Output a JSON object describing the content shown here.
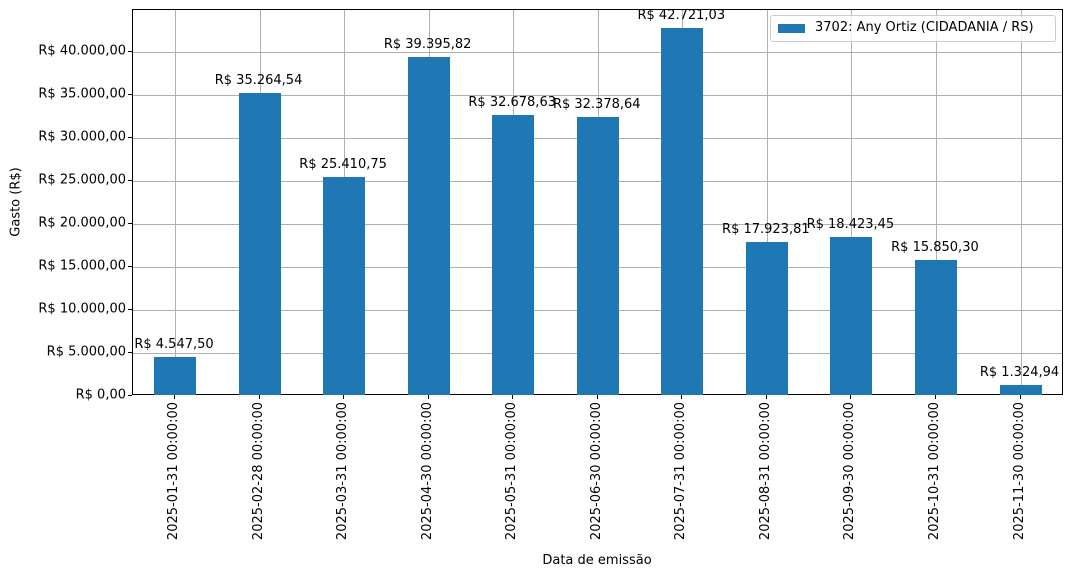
{
  "chart_data": {
    "type": "bar",
    "title": "",
    "xlabel": "Data de emissão",
    "ylabel": "Gasto (R$)",
    "ylim": [
      0,
      44857
    ],
    "grid": true,
    "legend_position": "upper right",
    "categories": [
      "2025-01-31 00:00:00",
      "2025-02-28 00:00:00",
      "2025-03-31 00:00:00",
      "2025-04-30 00:00:00",
      "2025-05-31 00:00:00",
      "2025-06-30 00:00:00",
      "2025-07-31 00:00:00",
      "2025-08-31 00:00:00",
      "2025-09-30 00:00:00",
      "2025-10-31 00:00:00",
      "2025-11-30 00:00:00"
    ],
    "series": [
      {
        "name": "3702: Any Ortiz (CIDADANIA / RS)",
        "color": "#1f77b4",
        "values": [
          4547.5,
          35264.54,
          25410.75,
          39395.82,
          32678.63,
          32378.64,
          42721.03,
          17923.81,
          18423.45,
          15850.3,
          1324.94
        ]
      }
    ],
    "bar_labels": [
      "R$ 4.547,50",
      "R$ 35.264,54",
      "R$ 25.410,75",
      "R$ 39.395,82",
      "R$ 32.678,63",
      "R$ 32.378,64",
      "R$ 42.721,03",
      "R$ 17.923,81",
      "R$ 18.423,45",
      "R$ 15.850,30",
      "R$ 1.324,94"
    ],
    "yticks": [
      0,
      5000,
      10000,
      15000,
      20000,
      25000,
      30000,
      35000,
      40000
    ],
    "ytick_labels": [
      "R$ 0,00",
      "R$ 5.000,00",
      "R$ 10.000,00",
      "R$ 15.000,00",
      "R$ 20.000,00",
      "R$ 25.000,00",
      "R$ 30.000,00",
      "R$ 35.000,00",
      "R$ 40.000,00"
    ]
  }
}
